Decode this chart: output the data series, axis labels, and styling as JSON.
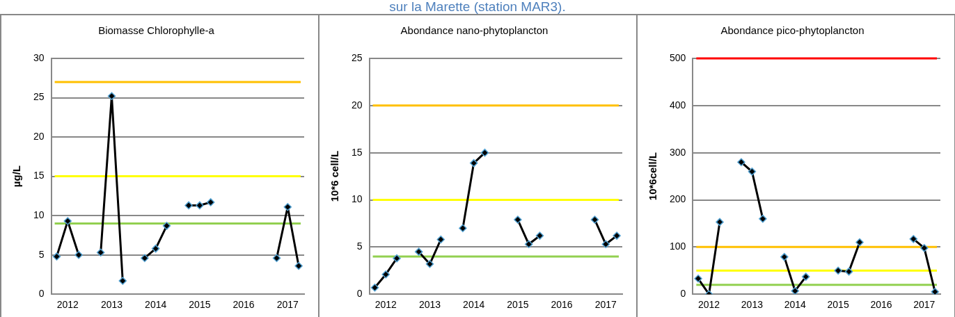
{
  "chart_data": [
    {
      "type": "line",
      "title": "Biomasse Chlorophylle-a",
      "ylabel": "µg/L",
      "annotations": [
        "sur la Marette (station MAR3)."
      ],
      "categories": [
        null,
        "2012",
        null,
        null,
        null,
        "2013",
        null,
        null,
        null,
        "2014",
        null,
        null,
        null,
        "2015",
        null,
        null,
        null,
        "2016",
        null,
        null,
        null,
        "2017",
        null
      ],
      "series": [
        {
          "color": "#000000",
          "values": [
            4.8,
            9.3,
            5.0,
            null,
            5.3,
            25.2,
            1.7,
            null,
            4.6,
            5.8,
            8.7,
            null,
            11.3,
            11.3,
            11.7,
            null,
            null,
            null,
            null,
            null,
            4.6,
            11.1,
            3.6
          ]
        }
      ],
      "ylim": [
        0,
        30
      ],
      "yticks": [
        0,
        5,
        10,
        15,
        20,
        25,
        30
      ],
      "grid": "y",
      "legend": false,
      "marker": "diamond",
      "line_style": "solid",
      "ref_lines": [
        {
          "axis": "y",
          "value": 27,
          "label": null,
          "color": "#ffc000"
        },
        {
          "axis": "y",
          "value": 15,
          "label": null,
          "color": "#ffff00"
        },
        {
          "axis": "y",
          "value": 9,
          "label": null,
          "color": "#92d050"
        }
      ]
    },
    {
      "type": "line",
      "title": "Abondance nano-phytoplancton",
      "ylabel": "10*6 cell/L",
      "categories": [
        null,
        "2012",
        null,
        null,
        null,
        "2013",
        null,
        null,
        null,
        "2014",
        null,
        null,
        null,
        "2015",
        null,
        null,
        null,
        "2016",
        null,
        null,
        null,
        "2017",
        null
      ],
      "series": [
        {
          "color": "#000000",
          "values": [
            0.7,
            2.1,
            3.8,
            null,
            4.5,
            3.2,
            5.8,
            null,
            7.0,
            13.9,
            15.0,
            null,
            null,
            7.9,
            5.3,
            6.2,
            null,
            null,
            null,
            null,
            7.9,
            5.3,
            6.2
          ]
        }
      ],
      "ylim": [
        0,
        25
      ],
      "yticks": [
        0,
        5,
        10,
        15,
        20,
        25
      ],
      "grid": "y",
      "legend": false,
      "marker": "diamond",
      "line_style": "solid",
      "ref_lines": [
        {
          "axis": "y",
          "value": 20,
          "label": null,
          "color": "#ffc000"
        },
        {
          "axis": "y",
          "value": 10,
          "label": null,
          "color": "#ffff00"
        },
        {
          "axis": "y",
          "value": 4,
          "label": null,
          "color": "#92d050"
        }
      ]
    },
    {
      "type": "line",
      "title": "Abondance pico-phytoplancton",
      "ylabel": "10*6cell/L",
      "categories": [
        null,
        "2012",
        null,
        null,
        null,
        "2013",
        null,
        null,
        null,
        "2014",
        null,
        null,
        null,
        "2015",
        null,
        null,
        null,
        "2016",
        null,
        null,
        null,
        "2017",
        null
      ],
      "series": [
        {
          "color": "#000000",
          "values": [
            33,
            0,
            153,
            null,
            280,
            260,
            160,
            null,
            79,
            7,
            37,
            null,
            null,
            50,
            48,
            110,
            null,
            null,
            null,
            null,
            117,
            98,
            5
          ]
        }
      ],
      "ylim": [
        0,
        500
      ],
      "yticks": [
        0,
        100,
        200,
        300,
        400,
        500
      ],
      "grid": "y",
      "legend": false,
      "marker": "diamond",
      "line_style": "solid",
      "ref_lines": [
        {
          "axis": "y",
          "value": 500,
          "label": null,
          "color": "#ff0000"
        },
        {
          "axis": "y",
          "value": 100,
          "label": null,
          "color": "#ffc000"
        },
        {
          "axis": "y",
          "value": 50,
          "label": null,
          "color": "#ffff00"
        },
        {
          "axis": "y",
          "value": 20,
          "label": null,
          "color": "#92d050"
        }
      ]
    }
  ]
}
